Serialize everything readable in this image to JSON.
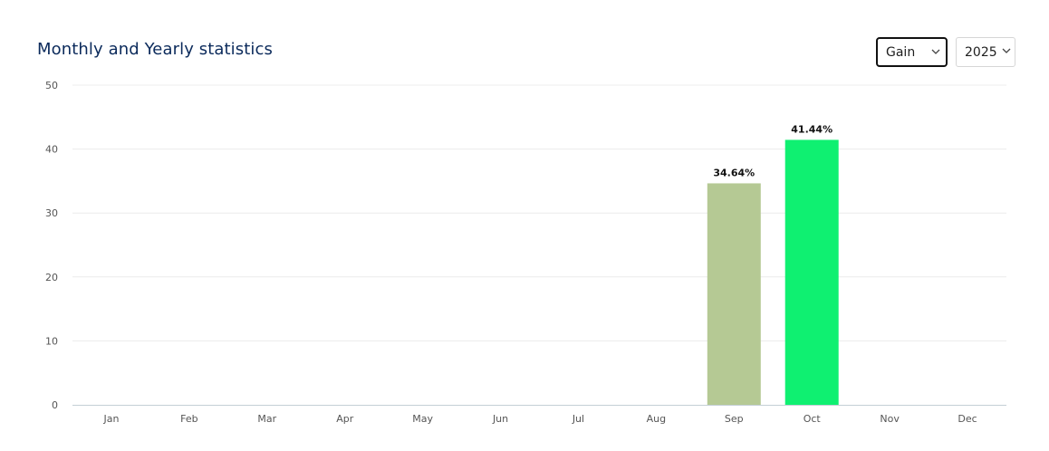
{
  "header": {
    "title": "Monthly and Yearly statistics"
  },
  "controls": {
    "metric": {
      "selected": "Gain",
      "icon": "chevron-down-icon"
    },
    "year": {
      "selected": "2025",
      "icon": "chevron-down-icon"
    }
  },
  "chart_data": {
    "type": "bar",
    "title": "",
    "xlabel": "",
    "ylabel": "",
    "ylim": [
      0,
      50
    ],
    "yticks": [
      0,
      10,
      20,
      30,
      40,
      50
    ],
    "categories": [
      "Jan",
      "Feb",
      "Mar",
      "Apr",
      "May",
      "Jun",
      "Jul",
      "Aug",
      "Sep",
      "Oct",
      "Nov",
      "Dec"
    ],
    "values": [
      null,
      null,
      null,
      null,
      null,
      null,
      null,
      null,
      34.64,
      41.44,
      null,
      null
    ],
    "data_labels": [
      "",
      "",
      "",
      "",
      "",
      "",
      "",
      "",
      "34.64%",
      "41.44%",
      "",
      ""
    ],
    "bar_colors": [
      "",
      "",
      "",
      "",
      "",
      "",
      "",
      "",
      "#b5c994",
      "#0ff071",
      "",
      ""
    ],
    "grid": true,
    "legend": "none"
  }
}
